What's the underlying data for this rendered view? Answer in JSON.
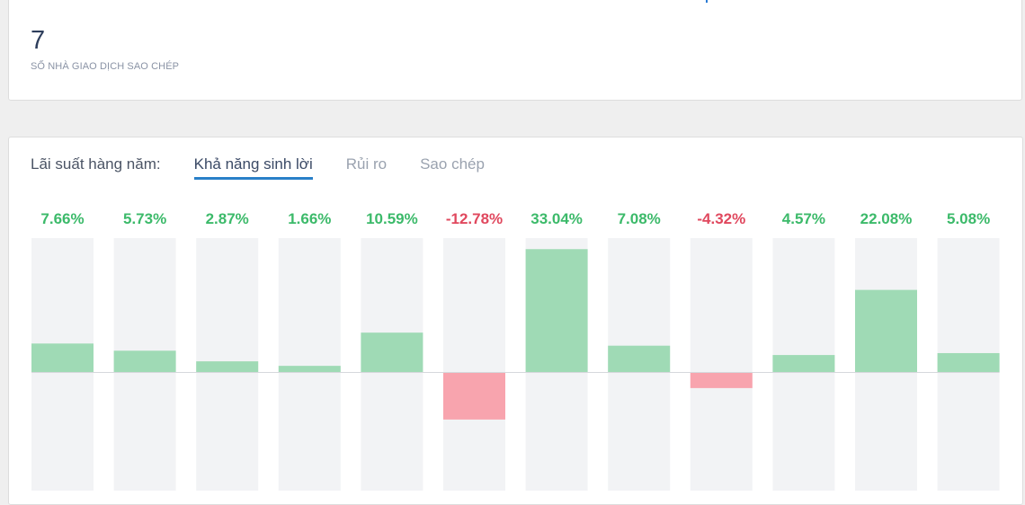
{
  "summary": {
    "value": "7",
    "label": "SỐ NHÀ GIAO DỊCH SAO CHÉP"
  },
  "tabs": {
    "title": "Lãi suất hàng năm:",
    "items": [
      {
        "label": "Khả năng sinh lời",
        "active": true
      },
      {
        "label": "Rủi ro",
        "active": false
      },
      {
        "label": "Sao chép",
        "active": false
      }
    ]
  },
  "colors": {
    "positive_text": "#3cba6a",
    "negative_text": "#e0485e",
    "positive_bar": "#9fdab5",
    "negative_bar": "#f8a4ae",
    "track": "#f2f3f5",
    "zero_line": "#d6d8dc"
  },
  "chart_data": {
    "type": "bar",
    "values": [
      7.66,
      5.73,
      2.87,
      1.66,
      10.59,
      -12.78,
      33.04,
      7.08,
      -4.32,
      4.57,
      22.08,
      5.08
    ],
    "labels": [
      "7.66%",
      "5.73%",
      "2.87%",
      "1.66%",
      "10.59%",
      "-12.78%",
      "33.04%",
      "7.08%",
      "-4.32%",
      "4.57%",
      "22.08%",
      "5.08%"
    ],
    "ylim": [
      -36,
      36
    ]
  }
}
